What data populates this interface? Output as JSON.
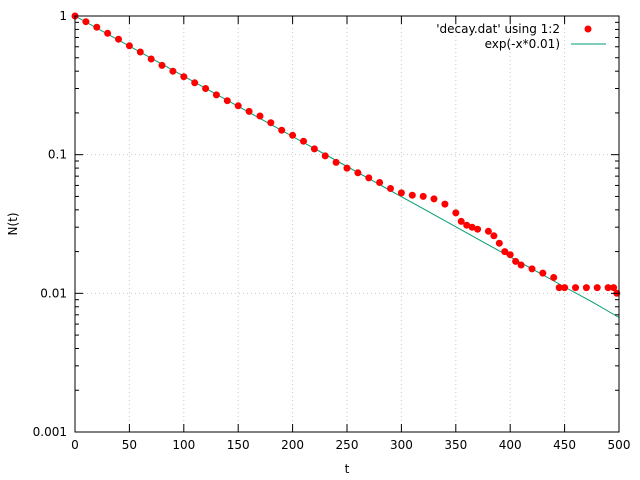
{
  "chart_data": {
    "type": "scatter",
    "title": "",
    "xlabel": "t",
    "ylabel": "N(t)",
    "xlim": [
      0,
      500
    ],
    "ylim": [
      0.001,
      1
    ],
    "yscale": "log",
    "grid": true,
    "legend_position": "top-right",
    "x_ticks": [
      {
        "value": 0,
        "label": "0"
      },
      {
        "value": 50,
        "label": "50"
      },
      {
        "value": 100,
        "label": "100"
      },
      {
        "value": 150,
        "label": "150"
      },
      {
        "value": 200,
        "label": "200"
      },
      {
        "value": 250,
        "label": "250"
      },
      {
        "value": 300,
        "label": "300"
      },
      {
        "value": 350,
        "label": "350"
      },
      {
        "value": 400,
        "label": "400"
      },
      {
        "value": 450,
        "label": "450"
      },
      {
        "value": 500,
        "label": "500"
      }
    ],
    "y_ticks": [
      {
        "value": 1,
        "label": "1"
      },
      {
        "value": 0.1,
        "label": "0.1"
      },
      {
        "value": 0.01,
        "label": "0.01"
      },
      {
        "value": 0.001,
        "label": "0.001"
      }
    ],
    "series": [
      {
        "name": "'decay.dat' using 1:2",
        "kind": "points",
        "color": "#ff0000",
        "x": [
          0,
          10,
          20,
          30,
          40,
          50,
          60,
          70,
          80,
          90,
          100,
          110,
          120,
          130,
          140,
          150,
          160,
          170,
          180,
          190,
          200,
          210,
          220,
          230,
          240,
          250,
          260,
          270,
          280,
          290,
          300,
          310,
          320,
          330,
          340,
          350,
          355,
          360,
          365,
          370,
          380,
          385,
          390,
          395,
          400,
          405,
          410,
          420,
          430,
          440,
          445,
          450,
          460,
          470,
          480,
          490,
          495,
          498
        ],
        "y": [
          1.0,
          0.91,
          0.83,
          0.75,
          0.68,
          0.61,
          0.55,
          0.49,
          0.44,
          0.4,
          0.365,
          0.33,
          0.3,
          0.27,
          0.245,
          0.225,
          0.205,
          0.19,
          0.17,
          0.15,
          0.138,
          0.125,
          0.11,
          0.098,
          0.088,
          0.08,
          0.074,
          0.068,
          0.063,
          0.057,
          0.053,
          0.051,
          0.05,
          0.048,
          0.044,
          0.038,
          0.033,
          0.031,
          0.03,
          0.029,
          0.028,
          0.026,
          0.023,
          0.02,
          0.019,
          0.017,
          0.016,
          0.015,
          0.014,
          0.013,
          0.011,
          0.011,
          0.011,
          0.011,
          0.011,
          0.011,
          0.011,
          0.01
        ]
      },
      {
        "name": "exp(-x*0.01)",
        "kind": "line",
        "color": "#009e73",
        "x": [
          0,
          25,
          50,
          75,
          100,
          125,
          150,
          175,
          200,
          225,
          250,
          275,
          300,
          325,
          350,
          375,
          400,
          425,
          450,
          475,
          500
        ],
        "y": [
          1.0,
          0.7788,
          0.6065,
          0.4724,
          0.3679,
          0.2865,
          0.2231,
          0.1738,
          0.1353,
          0.1054,
          0.0821,
          0.0639,
          0.0498,
          0.0388,
          0.0302,
          0.0235,
          0.0183,
          0.0143,
          0.0111,
          0.0087,
          0.0067
        ]
      }
    ]
  }
}
